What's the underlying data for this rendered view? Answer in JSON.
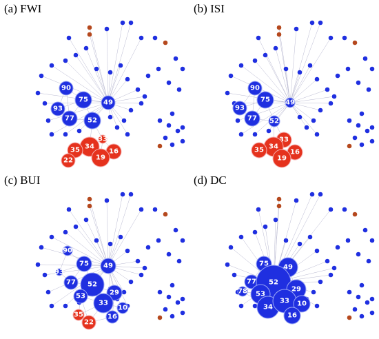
{
  "panels": [
    {
      "title": "(a) FWI",
      "nodes": [
        {
          "label": "90",
          "color": "#1f2fe0"
        },
        {
          "label": "93",
          "color": "#1f2fe0"
        },
        {
          "label": "75",
          "color": "#1f2fe0"
        },
        {
          "label": "49",
          "color": "#1f2fe0"
        },
        {
          "label": "77",
          "color": "#1f2fe0"
        },
        {
          "label": "52",
          "color": "#1f2fe0"
        },
        {
          "label": "33",
          "color": "#e5321d"
        },
        {
          "label": "34",
          "color": "#e5321d"
        },
        {
          "label": "35",
          "color": "#e5321d"
        },
        {
          "label": "16",
          "color": "#e5321d"
        },
        {
          "label": "22",
          "color": "#e5321d"
        },
        {
          "label": "19",
          "color": "#e5321d"
        }
      ]
    },
    {
      "title": "(b) ISI",
      "nodes": [
        {
          "label": "90",
          "color": "#1f2fe0"
        },
        {
          "label": "93",
          "color": "#1f2fe0"
        },
        {
          "label": "75",
          "color": "#1f2fe0"
        },
        {
          "label": "49",
          "color": "#1f2fe0"
        },
        {
          "label": "77",
          "color": "#1f2fe0"
        },
        {
          "label": "52",
          "color": "#1f2fe0"
        },
        {
          "label": "33",
          "color": "#e5321d"
        },
        {
          "label": "34",
          "color": "#e5321d"
        },
        {
          "label": "35",
          "color": "#e5321d"
        },
        {
          "label": "16",
          "color": "#e5321d"
        },
        {
          "label": "19",
          "color": "#e5321d"
        }
      ]
    },
    {
      "title": "(c) BUI",
      "nodes": [
        {
          "label": "90",
          "color": "#1f2fe0"
        },
        {
          "label": "93",
          "color": "#1f2fe0"
        },
        {
          "label": "75",
          "color": "#1f2fe0"
        },
        {
          "label": "49",
          "color": "#1f2fe0"
        },
        {
          "label": "77",
          "color": "#1f2fe0"
        },
        {
          "label": "52",
          "color": "#1f2fe0"
        },
        {
          "label": "53",
          "color": "#1f2fe0"
        },
        {
          "label": "29",
          "color": "#1f2fe0"
        },
        {
          "label": "33",
          "color": "#1f2fe0"
        },
        {
          "label": "10",
          "color": "#1f2fe0"
        },
        {
          "label": "35",
          "color": "#e5321d"
        },
        {
          "label": "16",
          "color": "#1f2fe0"
        },
        {
          "label": "22",
          "color": "#e5321d"
        }
      ]
    },
    {
      "title": "(d) DC",
      "nodes": [
        {
          "label": "75",
          "color": "#1f2fe0"
        },
        {
          "label": "49",
          "color": "#1f2fe0"
        },
        {
          "label": "77",
          "color": "#1f2fe0"
        },
        {
          "label": "52",
          "color": "#1f2fe0"
        },
        {
          "label": "78",
          "color": "#1f2fe0"
        },
        {
          "label": "53",
          "color": "#1f2fe0"
        },
        {
          "label": "29",
          "color": "#1f2fe0"
        },
        {
          "label": "34",
          "color": "#1f2fe0"
        },
        {
          "label": "33",
          "color": "#1f2fe0"
        },
        {
          "label": "10",
          "color": "#1f2fe0"
        },
        {
          "label": "16",
          "color": "#1f2fe0"
        }
      ]
    }
  ]
}
